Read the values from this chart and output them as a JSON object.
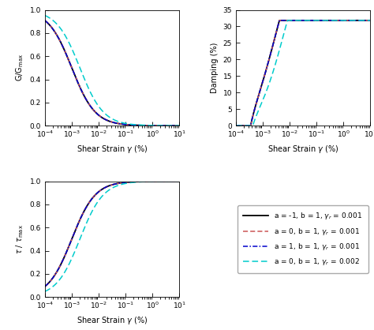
{
  "gamma_range_log": [
    -4,
    1
  ],
  "curves": [
    {
      "a": -1,
      "b": 1,
      "gamma_r": 0.001,
      "color": "#000000",
      "linestyle": "-",
      "linewidth": 1.3,
      "label": "a = -1, b = 1, $\\gamma_r$ = 0.001"
    },
    {
      "a": 0,
      "b": 1,
      "gamma_r": 0.001,
      "color": "#cc5555",
      "linestyle": "--",
      "linewidth": 1.1,
      "label": "a = 0, b = 1, $\\gamma_r$ = 0.001"
    },
    {
      "a": 1,
      "b": 1,
      "gamma_r": 0.001,
      "color": "#0000bb",
      "linestyle": "-.",
      "linewidth": 1.1,
      "label": "a = 1, b = 1, $\\gamma_r$ = 0.001"
    },
    {
      "a": 0,
      "b": 1,
      "gamma_r": 0.002,
      "color": "#00cccc",
      "linestyle": "--",
      "linewidth": 1.1,
      "label": "a = 0, b = 1, $\\gamma_r$ = 0.002"
    }
  ],
  "xlabel": "Shear Strain $\\gamma$ (%)",
  "ylabel_G": "G/G$_{\\rm max}$",
  "ylabel_D": "Damping (%)",
  "ylabel_tau": "$\\tau$ / $\\tau_{\\rm max}$",
  "ylim_G": [
    0,
    1
  ],
  "ylim_D": [
    0,
    35
  ],
  "ylim_tau": [
    0,
    1
  ],
  "D_max_percent": 31.83,
  "background_color": "#ffffff",
  "figsize": [
    4.74,
    4.18
  ],
  "dpi": 100
}
